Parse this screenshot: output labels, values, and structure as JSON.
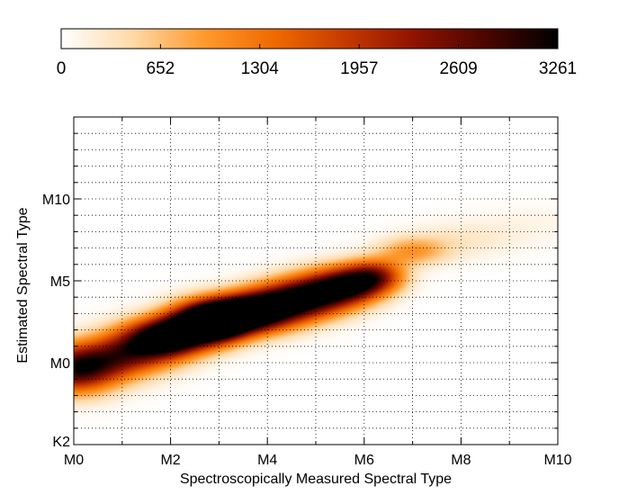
{
  "chart_data": {
    "type": "heatmap",
    "title": "",
    "xlabel": "Spectroscopically Measured Spectral Type",
    "ylabel": "Estimated Spectral Type",
    "x_ticks": [
      {
        "value": 0,
        "label": "M0"
      },
      {
        "value": 2,
        "label": "M2"
      },
      {
        "value": 4,
        "label": "M4"
      },
      {
        "value": 6,
        "label": "M6"
      },
      {
        "value": 8,
        "label": "M8"
      },
      {
        "value": 10,
        "label": "M10"
      }
    ],
    "y_ticks": [
      {
        "value": -5,
        "label": "K2"
      },
      {
        "value": 0,
        "label": "M0"
      },
      {
        "value": 5,
        "label": "M5"
      },
      {
        "value": 10,
        "label": "M10"
      }
    ],
    "xlim": [
      0,
      10
    ],
    "ylim": [
      -5,
      15
    ],
    "grid": true,
    "colorbar": {
      "placement": "top",
      "ticks": [
        {
          "value": 0,
          "label": "0"
        },
        {
          "value": 652,
          "label": "652"
        },
        {
          "value": 1304,
          "label": "1304"
        },
        {
          "value": 1957,
          "label": "1957"
        },
        {
          "value": 2609,
          "label": "2609"
        },
        {
          "value": 3261,
          "label": "3261"
        }
      ],
      "range": [
        0,
        3261
      ],
      "colormap": [
        "#ffffff",
        "#ffd9a8",
        "#ff9a2e",
        "#f06a00",
        "#c63a00",
        "#8e1200",
        "#4a0500",
        "#000000"
      ]
    },
    "density": [
      {
        "x": 0,
        "y": -0.5,
        "value": 2500,
        "sx": 0.6,
        "sy": 1.0
      },
      {
        "x": 0.8,
        "y": 0.2,
        "value": 1700,
        "sx": 0.7,
        "sy": 0.9
      },
      {
        "x": 1.5,
        "y": 1.2,
        "value": 2000,
        "sx": 0.6,
        "sy": 0.9
      },
      {
        "x": 2.0,
        "y": 1.6,
        "value": 2600,
        "sx": 0.5,
        "sy": 0.8
      },
      {
        "x": 2.6,
        "y": 2.4,
        "value": 2900,
        "sx": 0.5,
        "sy": 0.9
      },
      {
        "x": 3.0,
        "y": 2.5,
        "value": 3261,
        "sx": 0.45,
        "sy": 0.8
      },
      {
        "x": 3.5,
        "y": 3.0,
        "value": 2700,
        "sx": 0.5,
        "sy": 0.8
      },
      {
        "x": 4.0,
        "y": 3.3,
        "value": 2300,
        "sx": 0.5,
        "sy": 0.9
      },
      {
        "x": 4.6,
        "y": 3.8,
        "value": 2200,
        "sx": 0.5,
        "sy": 0.9
      },
      {
        "x": 5.2,
        "y": 4.3,
        "value": 2300,
        "sx": 0.5,
        "sy": 0.9
      },
      {
        "x": 5.8,
        "y": 4.8,
        "value": 2400,
        "sx": 0.45,
        "sy": 0.8
      },
      {
        "x": 6.3,
        "y": 5.3,
        "value": 1700,
        "sx": 0.4,
        "sy": 0.7
      },
      {
        "x": 7.0,
        "y": 6.8,
        "value": 900,
        "sx": 0.5,
        "sy": 0.6
      },
      {
        "x": 8.0,
        "y": 7.5,
        "value": 280,
        "sx": 0.8,
        "sy": 0.8
      },
      {
        "x": 9.5,
        "y": 8.5,
        "value": 120,
        "sx": 0.8,
        "sy": 0.9
      }
    ]
  }
}
